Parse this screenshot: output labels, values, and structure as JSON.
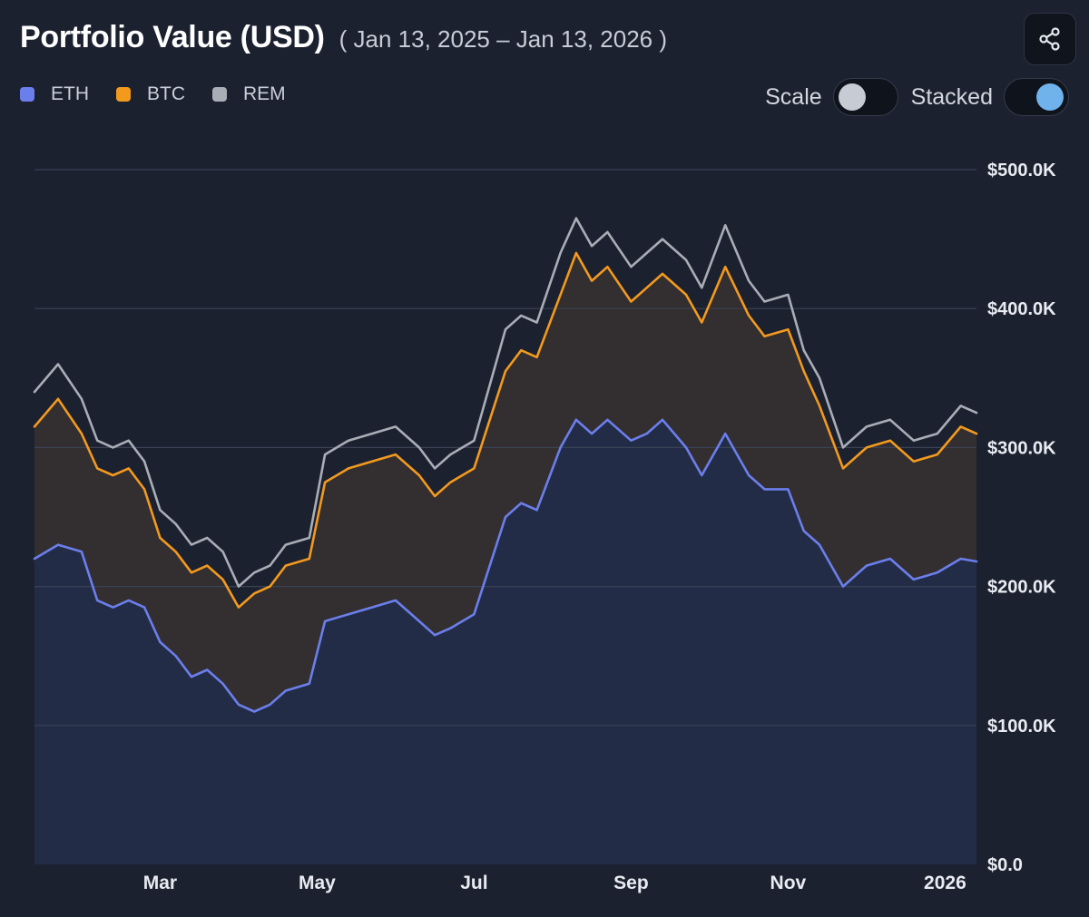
{
  "header": {
    "title": "Portfolio Value (USD)",
    "date_range": "( Jan 13, 2025 – Jan 13, 2026 )"
  },
  "share_icon": "share-icon",
  "controls": {
    "scale_label": "Scale",
    "scale_on": false,
    "stacked_label": "Stacked",
    "stacked_on": true
  },
  "chart_data": {
    "type": "area",
    "stacked": true,
    "title": "Portfolio Value (USD)",
    "subtitle": "( Jan 13, 2025 – Jan 13, 2026 )",
    "legend_position": "top-left",
    "y_axis_position": "right",
    "ylim": [
      0,
      500000
    ],
    "y_ticks": [
      0,
      100000,
      200000,
      300000,
      400000,
      500000
    ],
    "y_tick_labels": [
      "$0.0",
      "$100.0K",
      "$200.0K",
      "$300.0K",
      "$400.0K",
      "$500.0K"
    ],
    "x_ticks": [
      {
        "label": "Mar",
        "month": 1.6
      },
      {
        "label": "May",
        "month": 3.6
      },
      {
        "label": "Jul",
        "month": 5.6
      },
      {
        "label": "Sep",
        "month": 7.6
      },
      {
        "label": "Nov",
        "month": 9.6
      },
      {
        "label": "2026",
        "month": 11.6
      }
    ],
    "x_range_months": [
      0,
      12
    ],
    "x_unit": "months since Jan 13, 2025",
    "series": [
      {
        "name": "ETH",
        "color": "#6b7fec",
        "fill": "#232c47",
        "values_cumulative": [
          [
            0.0,
            220000
          ],
          [
            0.3,
            230000
          ],
          [
            0.6,
            225000
          ],
          [
            0.8,
            190000
          ],
          [
            1.0,
            185000
          ],
          [
            1.2,
            190000
          ],
          [
            1.4,
            185000
          ],
          [
            1.6,
            160000
          ],
          [
            1.8,
            150000
          ],
          [
            2.0,
            135000
          ],
          [
            2.2,
            140000
          ],
          [
            2.4,
            130000
          ],
          [
            2.6,
            115000
          ],
          [
            2.8,
            110000
          ],
          [
            3.0,
            115000
          ],
          [
            3.2,
            125000
          ],
          [
            3.5,
            130000
          ],
          [
            3.7,
            175000
          ],
          [
            4.0,
            180000
          ],
          [
            4.3,
            185000
          ],
          [
            4.6,
            190000
          ],
          [
            4.9,
            175000
          ],
          [
            5.1,
            165000
          ],
          [
            5.3,
            170000
          ],
          [
            5.6,
            180000
          ],
          [
            5.8,
            215000
          ],
          [
            6.0,
            250000
          ],
          [
            6.2,
            260000
          ],
          [
            6.4,
            255000
          ],
          [
            6.7,
            300000
          ],
          [
            6.9,
            320000
          ],
          [
            7.1,
            310000
          ],
          [
            7.3,
            320000
          ],
          [
            7.6,
            305000
          ],
          [
            7.8,
            310000
          ],
          [
            8.0,
            320000
          ],
          [
            8.3,
            300000
          ],
          [
            8.5,
            280000
          ],
          [
            8.8,
            310000
          ],
          [
            9.1,
            280000
          ],
          [
            9.3,
            270000
          ],
          [
            9.6,
            270000
          ],
          [
            9.8,
            240000
          ],
          [
            10.0,
            230000
          ],
          [
            10.3,
            200000
          ],
          [
            10.6,
            215000
          ],
          [
            10.9,
            220000
          ],
          [
            11.2,
            205000
          ],
          [
            11.5,
            210000
          ],
          [
            11.8,
            220000
          ],
          [
            12.0,
            218000
          ]
        ]
      },
      {
        "name": "BTC",
        "color": "#f39a1e",
        "fill": "#332e2f",
        "values_cumulative": [
          [
            0.0,
            315000
          ],
          [
            0.3,
            335000
          ],
          [
            0.6,
            310000
          ],
          [
            0.8,
            285000
          ],
          [
            1.0,
            280000
          ],
          [
            1.2,
            285000
          ],
          [
            1.4,
            270000
          ],
          [
            1.6,
            235000
          ],
          [
            1.8,
            225000
          ],
          [
            2.0,
            210000
          ],
          [
            2.2,
            215000
          ],
          [
            2.4,
            205000
          ],
          [
            2.6,
            185000
          ],
          [
            2.8,
            195000
          ],
          [
            3.0,
            200000
          ],
          [
            3.2,
            215000
          ],
          [
            3.5,
            220000
          ],
          [
            3.7,
            275000
          ],
          [
            4.0,
            285000
          ],
          [
            4.3,
            290000
          ],
          [
            4.6,
            295000
          ],
          [
            4.9,
            280000
          ],
          [
            5.1,
            265000
          ],
          [
            5.3,
            275000
          ],
          [
            5.6,
            285000
          ],
          [
            5.8,
            320000
          ],
          [
            6.0,
            355000
          ],
          [
            6.2,
            370000
          ],
          [
            6.4,
            365000
          ],
          [
            6.7,
            410000
          ],
          [
            6.9,
            440000
          ],
          [
            7.1,
            420000
          ],
          [
            7.3,
            430000
          ],
          [
            7.6,
            405000
          ],
          [
            7.8,
            415000
          ],
          [
            8.0,
            425000
          ],
          [
            8.3,
            410000
          ],
          [
            8.5,
            390000
          ],
          [
            8.8,
            430000
          ],
          [
            9.1,
            395000
          ],
          [
            9.3,
            380000
          ],
          [
            9.6,
            385000
          ],
          [
            9.8,
            355000
          ],
          [
            10.0,
            330000
          ],
          [
            10.3,
            285000
          ],
          [
            10.6,
            300000
          ],
          [
            10.9,
            305000
          ],
          [
            11.2,
            290000
          ],
          [
            11.5,
            295000
          ],
          [
            11.8,
            315000
          ],
          [
            12.0,
            310000
          ]
        ]
      },
      {
        "name": "REM",
        "color": "#a9adb6",
        "fill": "none",
        "values_cumulative": [
          [
            0.0,
            340000
          ],
          [
            0.3,
            360000
          ],
          [
            0.6,
            335000
          ],
          [
            0.8,
            305000
          ],
          [
            1.0,
            300000
          ],
          [
            1.2,
            305000
          ],
          [
            1.4,
            290000
          ],
          [
            1.6,
            255000
          ],
          [
            1.8,
            245000
          ],
          [
            2.0,
            230000
          ],
          [
            2.2,
            235000
          ],
          [
            2.4,
            225000
          ],
          [
            2.6,
            200000
          ],
          [
            2.8,
            210000
          ],
          [
            3.0,
            215000
          ],
          [
            3.2,
            230000
          ],
          [
            3.5,
            235000
          ],
          [
            3.7,
            295000
          ],
          [
            4.0,
            305000
          ],
          [
            4.3,
            310000
          ],
          [
            4.6,
            315000
          ],
          [
            4.9,
            300000
          ],
          [
            5.1,
            285000
          ],
          [
            5.3,
            295000
          ],
          [
            5.6,
            305000
          ],
          [
            5.8,
            345000
          ],
          [
            6.0,
            385000
          ],
          [
            6.2,
            395000
          ],
          [
            6.4,
            390000
          ],
          [
            6.7,
            440000
          ],
          [
            6.9,
            465000
          ],
          [
            7.1,
            445000
          ],
          [
            7.3,
            455000
          ],
          [
            7.6,
            430000
          ],
          [
            7.8,
            440000
          ],
          [
            8.0,
            450000
          ],
          [
            8.3,
            435000
          ],
          [
            8.5,
            415000
          ],
          [
            8.8,
            460000
          ],
          [
            9.1,
            420000
          ],
          [
            9.3,
            405000
          ],
          [
            9.6,
            410000
          ],
          [
            9.8,
            370000
          ],
          [
            10.0,
            350000
          ],
          [
            10.3,
            300000
          ],
          [
            10.6,
            315000
          ],
          [
            10.9,
            320000
          ],
          [
            11.2,
            305000
          ],
          [
            11.5,
            310000
          ],
          [
            11.8,
            330000
          ],
          [
            12.0,
            325000
          ]
        ]
      }
    ]
  }
}
